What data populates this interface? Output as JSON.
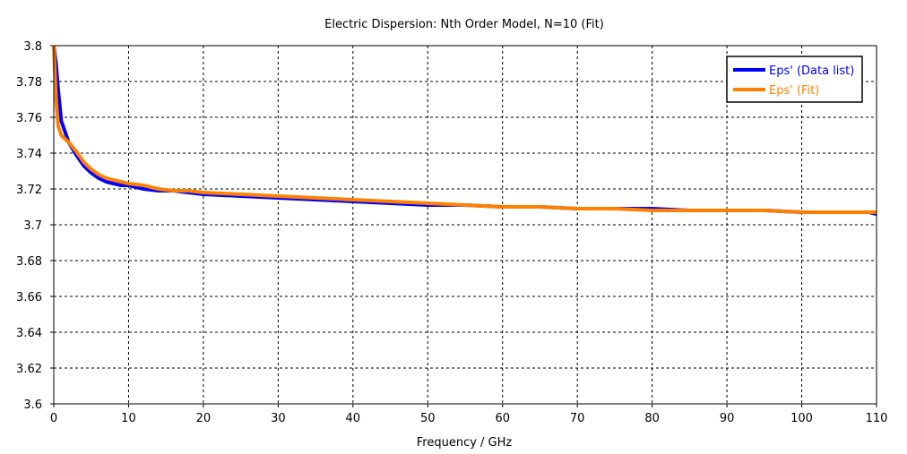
{
  "chart_data": {
    "type": "line",
    "title": "Electric Dispersion: Nth Order Model, N=10 (Fit)",
    "xlabel": "Frequency / GHz",
    "ylabel": "",
    "xlim": [
      0,
      110
    ],
    "ylim": [
      3.6,
      3.8
    ],
    "xticks": [
      0,
      10,
      20,
      30,
      40,
      50,
      60,
      70,
      80,
      90,
      100,
      110
    ],
    "xtick_labels": [
      "0",
      "10",
      "20",
      "30",
      "40",
      "50",
      "60",
      "70",
      "80",
      "90",
      "100",
      "110"
    ],
    "yticks": [
      3.6,
      3.62,
      3.64,
      3.66,
      3.68,
      3.7,
      3.72,
      3.74,
      3.76,
      3.78,
      3.8
    ],
    "ytick_labels": [
      "3.6",
      "3.62",
      "3.64",
      "3.66",
      "3.68",
      "3.7",
      "3.72",
      "3.74",
      "3.76",
      "3.78",
      "3.8"
    ],
    "grid": true,
    "legend_position": "top-right",
    "series": [
      {
        "name": "Eps' (Data list)",
        "color": "#0000ff",
        "x": [
          0,
          0.3,
          0.6,
          1,
          1.5,
          2,
          3,
          4,
          5,
          6,
          7,
          8,
          9,
          10,
          12,
          14,
          16,
          18,
          20,
          25,
          30,
          35,
          40,
          45,
          50,
          55,
          60,
          65,
          70,
          75,
          80,
          85,
          90,
          95,
          100,
          105,
          109,
          110
        ],
        "y": [
          3.8,
          3.79,
          3.775,
          3.758,
          3.752,
          3.746,
          3.739,
          3.733,
          3.729,
          3.726,
          3.724,
          3.723,
          3.722,
          3.722,
          3.72,
          3.719,
          3.719,
          3.718,
          3.717,
          3.716,
          3.715,
          3.714,
          3.713,
          3.712,
          3.711,
          3.711,
          3.71,
          3.71,
          3.709,
          3.709,
          3.709,
          3.708,
          3.708,
          3.708,
          3.707,
          3.707,
          3.707,
          3.706
        ]
      },
      {
        "name": "Eps' (Fit)",
        "color": "#ff8000",
        "x": [
          0,
          0.3,
          0.6,
          1,
          1.5,
          2,
          3,
          4,
          5,
          6,
          7,
          8,
          9,
          10,
          12,
          14,
          16,
          18,
          20,
          25,
          30,
          35,
          40,
          45,
          50,
          55,
          60,
          65,
          70,
          75,
          80,
          85,
          90,
          95,
          100,
          105,
          110
        ],
        "y": [
          3.8,
          3.77,
          3.755,
          3.75,
          3.748,
          3.746,
          3.741,
          3.735,
          3.731,
          3.728,
          3.726,
          3.725,
          3.724,
          3.723,
          3.722,
          3.72,
          3.719,
          3.719,
          3.718,
          3.717,
          3.716,
          3.715,
          3.714,
          3.713,
          3.712,
          3.711,
          3.71,
          3.71,
          3.709,
          3.709,
          3.708,
          3.708,
          3.708,
          3.708,
          3.707,
          3.707,
          3.707
        ]
      }
    ]
  }
}
